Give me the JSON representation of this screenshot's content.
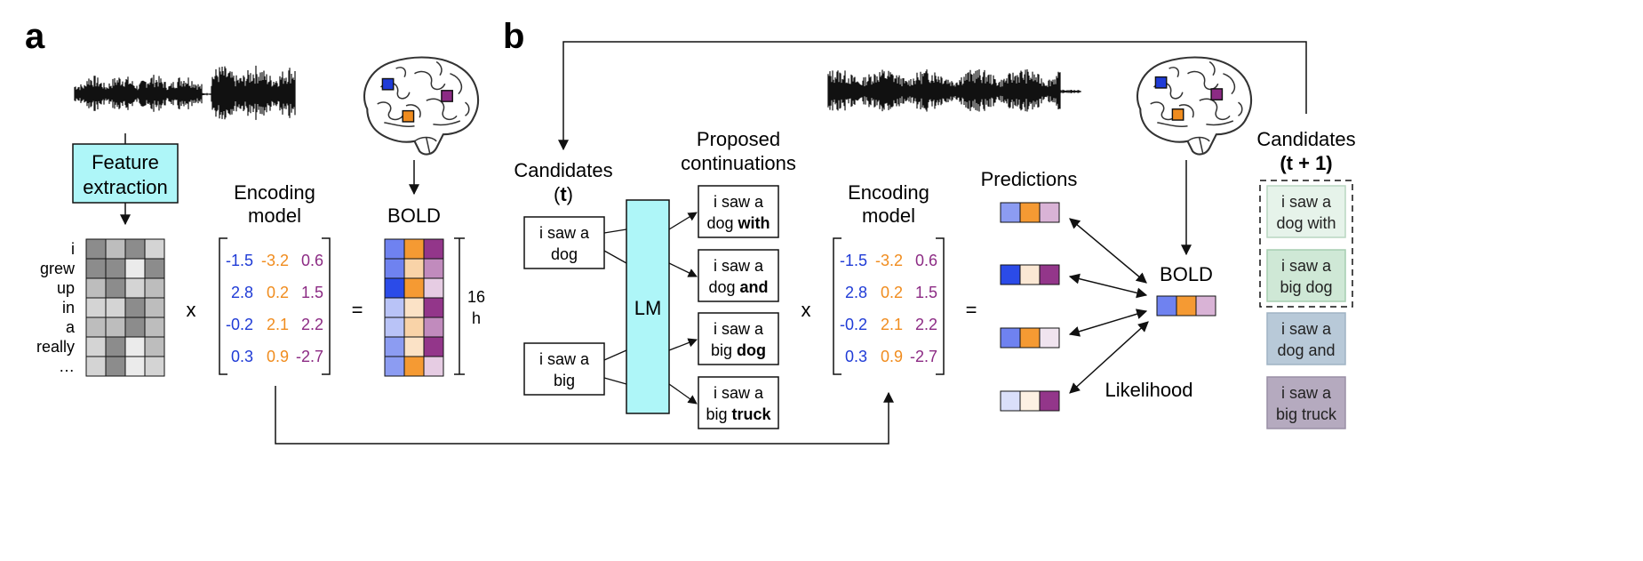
{
  "panel_a": {
    "panel_label": "a",
    "feature_box_line1": "Feature",
    "feature_box_line2": "extraction",
    "words": [
      "i",
      "grew",
      "up",
      "in",
      "a",
      "really",
      "…"
    ],
    "feature_grid": [
      [
        "#8c8c8c",
        "#bdbdbd",
        "#8c8c8c",
        "#d4d4d4"
      ],
      [
        "#8c8c8c",
        "#8c8c8c",
        "#ebebeb",
        "#8c8c8c"
      ],
      [
        "#bdbdbd",
        "#8c8c8c",
        "#d4d4d4",
        "#bdbdbd"
      ],
      [
        "#d4d4d4",
        "#d4d4d4",
        "#8c8c8c",
        "#bdbdbd"
      ],
      [
        "#bdbdbd",
        "#bdbdbd",
        "#8c8c8c",
        "#bdbdbd"
      ],
      [
        "#d4d4d4",
        "#8c8c8c",
        "#ebebeb",
        "#bdbdbd"
      ],
      [
        "#d4d4d4",
        "#8c8c8c",
        "#ebebeb",
        "#d4d4d4"
      ]
    ],
    "times_sign": "x",
    "equals_sign": "=",
    "encoding_title_line1": "Encoding",
    "encoding_title_line2": "model",
    "encoding_matrix": [
      [
        "-1.5",
        "-3.2",
        "0.6"
      ],
      [
        "2.8",
        "0.2",
        "1.5"
      ],
      [
        "-0.2",
        "2.1",
        "2.2"
      ],
      [
        "0.3",
        "0.9",
        "-2.7"
      ]
    ],
    "bold_title": "BOLD",
    "bold_grid": [
      [
        "#6f82f0",
        "#f59a33",
        "#93368a"
      ],
      [
        "#6f82f0",
        "#f9d3a8",
        "#c18bbd"
      ],
      [
        "#2b4be8",
        "#f59a33",
        "#e6cce3"
      ],
      [
        "#b9c3f7",
        "#fbe2c6",
        "#93368a"
      ],
      [
        "#b9c3f7",
        "#f9d3a8",
        "#c18bbd"
      ],
      [
        "#8c9cf2",
        "#fbe2c6",
        "#93368a"
      ],
      [
        "#8c9cf2",
        "#f59a33",
        "#e6cce3"
      ]
    ],
    "duration_line1": "16",
    "duration_line2": "h"
  },
  "panel_b": {
    "panel_label": "b",
    "candidates_t_line1": "Candidates",
    "candidates_t_line2": "(t)",
    "candidate_inputs": [
      {
        "line1": "i saw a",
        "line2": "dog"
      },
      {
        "line1": "i saw a",
        "line2": "big"
      }
    ],
    "lm_label": "LM",
    "proposed_title_line1": "Proposed",
    "proposed_title_line2": "continuations",
    "continuations": [
      {
        "line1": "i saw a",
        "prefix": "dog ",
        "bold_word": "with"
      },
      {
        "line1": "i saw a",
        "prefix": "dog ",
        "bold_word": "and"
      },
      {
        "line1": "i saw a",
        "prefix": "big ",
        "bold_word": "dog"
      },
      {
        "line1": "i saw a",
        "prefix": "big ",
        "bold_word": "truck"
      }
    ],
    "times_sign": "x",
    "equals_sign": "=",
    "encoding_title_line1": "Encoding",
    "encoding_title_line2": "model",
    "encoding_matrix": [
      [
        "-1.5",
        "-3.2",
        "0.6"
      ],
      [
        "2.8",
        "0.2",
        "1.5"
      ],
      [
        "-0.2",
        "2.1",
        "2.2"
      ],
      [
        "0.3",
        "0.9",
        "-2.7"
      ]
    ],
    "predictions_title": "Predictions",
    "predictions": [
      [
        "#8c9cf2",
        "#f59a33",
        "#d9b3d6"
      ],
      [
        "#2b4be8",
        "#fbe8d4",
        "#93368a"
      ],
      [
        "#6f82f0",
        "#f59a33",
        "#f0e4ef"
      ],
      [
        "#dadffa",
        "#fdf1e3",
        "#93368a"
      ]
    ],
    "bold_title": "BOLD",
    "bold_vector": [
      "#6f82f0",
      "#f59a33",
      "#d9b3d6"
    ],
    "likelihood_label": "Likelihood",
    "candidates_next_line1": "Candidates",
    "candidates_next_line2": "(t + 1)",
    "next_candidates": [
      {
        "line1": "i saw a",
        "line2": "dog with",
        "fill": "#e6f3ea",
        "stroke": "#b8d6c1"
      },
      {
        "line1": "i saw a",
        "line2": "big dog",
        "fill": "#cfe8d6",
        "stroke": "#a6cdb0"
      },
      {
        "line1": "i saw a",
        "line2": "dog and",
        "fill": "#b8c9d8",
        "stroke": "#9fb3c4"
      },
      {
        "line1": "i saw a",
        "line2": "big truck",
        "fill": "#b5aabf",
        "stroke": "#9a8fa6"
      }
    ]
  },
  "colors": {
    "blue": "#1f3bd6",
    "orange": "#f08c1e",
    "purple": "#8c2b84",
    "cyan_box": "#aef6f8",
    "box_stroke": "#111111"
  }
}
